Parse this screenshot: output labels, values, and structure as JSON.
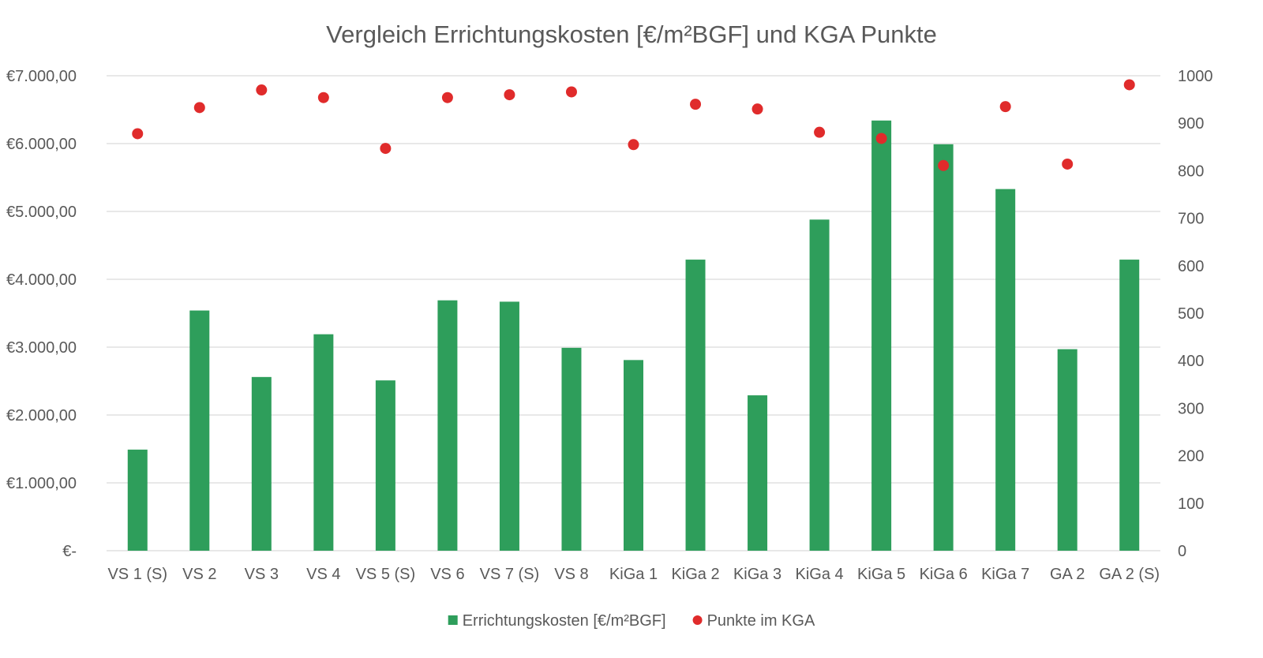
{
  "chart_data": {
    "type": "bar",
    "title": "Vergleich Errichtungskosten [€/m²BGF] und KGA Punkte",
    "categories": [
      "VS 1 (S)",
      "VS 2",
      "VS 3",
      "VS 4",
      "VS 5 (S)",
      "VS 6",
      "VS 7 (S)",
      "VS 8",
      "KiGa 1",
      "KiGa 2",
      "KiGa 3",
      "KiGa 4",
      "KiGa 5",
      "KiGa 6",
      "KiGa 7",
      "GA 2",
      "GA 2 (S)"
    ],
    "series": [
      {
        "name": "Errichtungskosten [€/m²BGF]",
        "type": "bar",
        "axis": "left",
        "color": "#2e9e5b",
        "values": [
          1490,
          3540,
          2560,
          3190,
          2510,
          3690,
          3670,
          2990,
          2810,
          4290,
          2290,
          4880,
          6340,
          5990,
          5330,
          2970,
          4290
        ]
      },
      {
        "name": "Punkte im KGA",
        "type": "scatter",
        "axis": "right",
        "color": "#e02b2b",
        "values": [
          878,
          933,
          970,
          954,
          847,
          954,
          960,
          966,
          855,
          940,
          930,
          881,
          868,
          811,
          935,
          814,
          981
        ]
      }
    ],
    "y_left": {
      "min": 0,
      "max": 7000,
      "ticks": [
        0,
        1000,
        2000,
        3000,
        4000,
        5000,
        6000,
        7000
      ],
      "tick_labels": [
        "€-",
        "€1.000,00",
        "€2.000,00",
        "€3.000,00",
        "€4.000,00",
        "€5.000,00",
        "€6.000,00",
        "€7.000,00"
      ]
    },
    "y_right": {
      "min": 0,
      "max": 1000,
      "ticks": [
        0,
        100,
        200,
        300,
        400,
        500,
        600,
        700,
        800,
        900,
        1000
      ],
      "tick_labels": [
        "0",
        "100",
        "200",
        "300",
        "400",
        "500",
        "600",
        "700",
        "800",
        "900",
        "1000"
      ]
    },
    "grid": true,
    "legend": "bottom"
  }
}
